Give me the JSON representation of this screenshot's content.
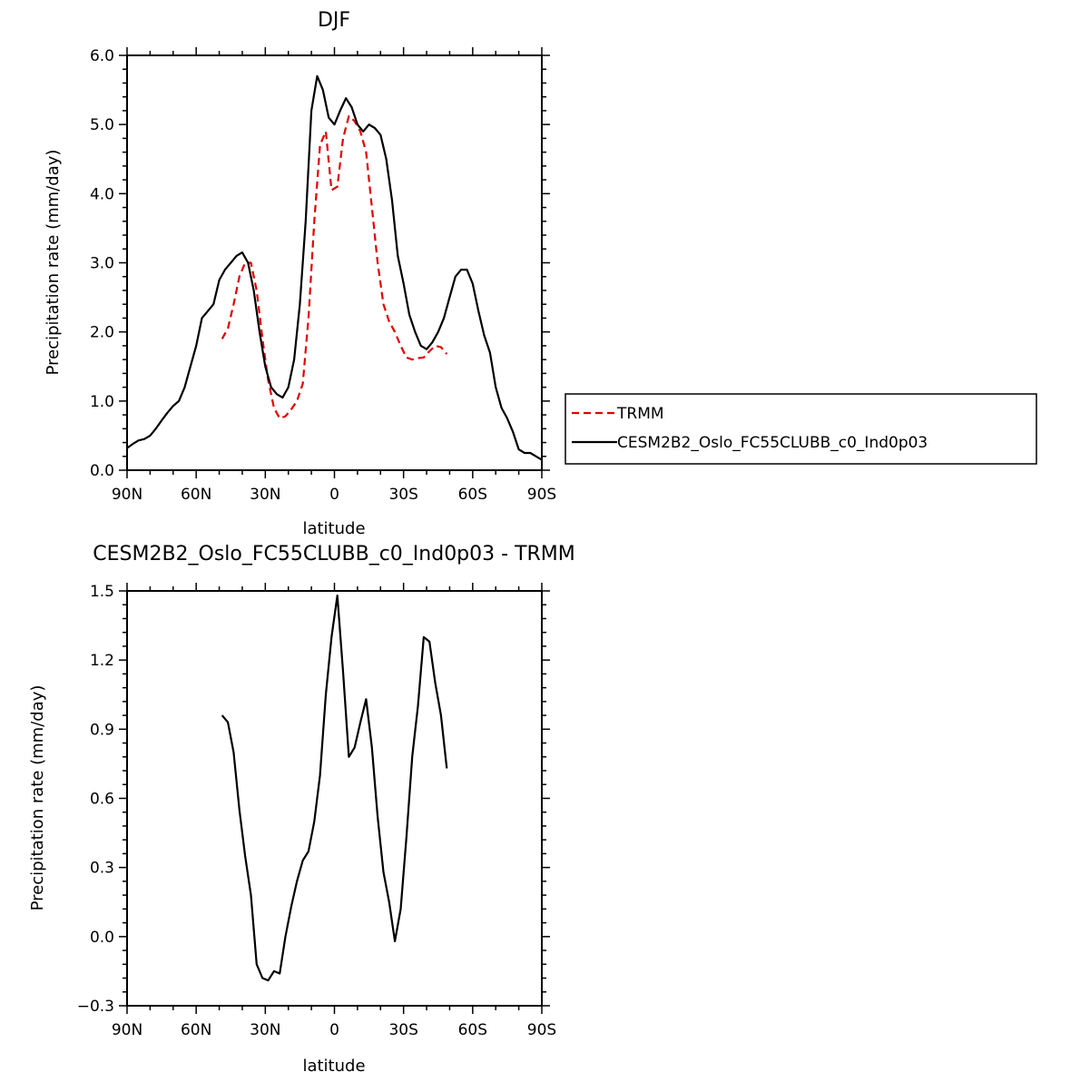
{
  "chart_data": [
    {
      "type": "line",
      "title": "DJF",
      "xlabel": "latitude",
      "ylabel": "Precipitation rate (mm/day)",
      "xlim": [
        90,
        -90
      ],
      "ylim": [
        0,
        6
      ],
      "x_ticks": [
        90,
        60,
        30,
        0,
        -30,
        -60,
        -90
      ],
      "x_tick_labels": [
        "90N",
        "60N",
        "30N",
        "0",
        "30S",
        "60S",
        "90S"
      ],
      "y_ticks": [
        0,
        1,
        2,
        3,
        4,
        5,
        6
      ],
      "y_tick_labels": [
        "0.0",
        "1.0",
        "2.0",
        "3.0",
        "4.0",
        "5.0",
        "6.0"
      ],
      "legend_position": "right",
      "series": [
        {
          "name": "TRMM",
          "color": "#e00000",
          "dash": "dashed",
          "x": [
            48.75,
            46.25,
            43.75,
            41.25,
            38.75,
            36.25,
            33.75,
            31.25,
            28.75,
            26.25,
            23.75,
            21.25,
            18.75,
            16.25,
            13.75,
            11.25,
            8.75,
            6.25,
            3.75,
            1.25,
            -1.25,
            -3.75,
            -6.25,
            -8.75,
            -11.25,
            -13.75,
            -16.25,
            -18.75,
            -21.25,
            -23.75,
            -26.25,
            -28.75,
            -31.25,
            -33.75,
            -36.25,
            -38.75,
            -41.25,
            -43.75,
            -46.25,
            -48.75
          ],
          "y": [
            1.9,
            2.05,
            2.4,
            2.8,
            3.0,
            3.0,
            2.6,
            1.9,
            1.3,
            0.9,
            0.75,
            0.78,
            0.88,
            1.0,
            1.25,
            2.2,
            3.6,
            4.7,
            4.9,
            4.05,
            4.1,
            4.8,
            5.12,
            5.05,
            4.9,
            4.6,
            3.8,
            3.0,
            2.4,
            2.15,
            2.0,
            1.8,
            1.63,
            1.6,
            1.62,
            1.63,
            1.72,
            1.8,
            1.78,
            1.68
          ]
        },
        {
          "name": "CESM2B2_Oslo_FC55CLUBB_c0_Ind0p03",
          "color": "#000000",
          "dash": "solid",
          "x": [
            90,
            87.5,
            85,
            82.5,
            80,
            77.5,
            75,
            72.5,
            70,
            67.5,
            65,
            62.5,
            60,
            57.5,
            55,
            52.5,
            50,
            47.5,
            45,
            42.5,
            40,
            37.5,
            35,
            32.5,
            30,
            27.5,
            25,
            22.5,
            20,
            17.5,
            15,
            12.5,
            10,
            7.5,
            5,
            2.5,
            0,
            -2.5,
            -5,
            -7.5,
            -10,
            -12.5,
            -15,
            -17.5,
            -20,
            -22.5,
            -25,
            -27.5,
            -30,
            -32.5,
            -35,
            -37.5,
            -40,
            -42.5,
            -45,
            -47.5,
            -50,
            -52.5,
            -55,
            -57.5,
            -60,
            -62.5,
            -65,
            -67.5,
            -70,
            -72.5,
            -75,
            -77.5,
            -80,
            -82.5,
            -85,
            -87.5,
            -90
          ],
          "y": [
            0.32,
            0.38,
            0.43,
            0.45,
            0.5,
            0.6,
            0.72,
            0.83,
            0.93,
            1.0,
            1.2,
            1.5,
            1.8,
            2.2,
            2.3,
            2.4,
            2.75,
            2.9,
            3.0,
            3.1,
            3.15,
            3.0,
            2.6,
            2.0,
            1.5,
            1.2,
            1.1,
            1.05,
            1.2,
            1.6,
            2.4,
            3.6,
            5.2,
            5.7,
            5.5,
            5.1,
            5.0,
            5.2,
            5.38,
            5.25,
            5.0,
            4.9,
            5.0,
            4.95,
            4.85,
            4.5,
            3.9,
            3.1,
            2.7,
            2.25,
            2.0,
            1.8,
            1.75,
            1.85,
            2.0,
            2.2,
            2.5,
            2.8,
            2.9,
            2.9,
            2.7,
            2.3,
            1.95,
            1.7,
            1.2,
            0.9,
            0.75,
            0.55,
            0.3,
            0.25,
            0.25,
            0.2,
            0.15
          ]
        }
      ]
    },
    {
      "type": "line",
      "title": "CESM2B2_Oslo_FC55CLUBB_c0_Ind0p03 - TRMM",
      "xlabel": "latitude",
      "ylabel": "Precipitation rate (mm/day)",
      "xlim": [
        90,
        -90
      ],
      "ylim": [
        -0.3,
        1.5
      ],
      "x_ticks": [
        90,
        60,
        30,
        0,
        -30,
        -60,
        -90
      ],
      "x_tick_labels": [
        "90N",
        "60N",
        "30N",
        "0",
        "30S",
        "60S",
        "90S"
      ],
      "y_ticks": [
        -0.3,
        0,
        0.3,
        0.6,
        0.9,
        1.2,
        1.5
      ],
      "y_tick_labels": [
        "−0.3",
        "0.0",
        "0.3",
        "0.6",
        "0.9",
        "1.2",
        "1.5"
      ],
      "series": [
        {
          "color": "#000000",
          "dash": "solid",
          "x": [
            48.75,
            46.25,
            43.75,
            41.25,
            38.75,
            36.25,
            33.75,
            31.25,
            28.75,
            26.25,
            23.75,
            21.25,
            18.75,
            16.25,
            13.75,
            11.25,
            8.75,
            6.25,
            3.75,
            1.25,
            -1.25,
            -3.75,
            -6.25,
            -8.75,
            -11.25,
            -13.75,
            -16.25,
            -18.75,
            -21.25,
            -23.75,
            -26.25,
            -28.75,
            -31.25,
            -33.75,
            -36.25,
            -38.75,
            -41.25,
            -43.75,
            -46.25,
            -48.75
          ],
          "y": [
            0.96,
            0.93,
            0.8,
            0.55,
            0.35,
            0.18,
            -0.12,
            -0.18,
            -0.19,
            -0.15,
            -0.16,
            0.0,
            0.13,
            0.24,
            0.33,
            0.37,
            0.5,
            0.7,
            1.05,
            1.3,
            1.48,
            1.15,
            0.78,
            0.82,
            0.93,
            1.03,
            0.82,
            0.52,
            0.28,
            0.15,
            -0.02,
            0.12,
            0.43,
            0.78,
            1.0,
            1.3,
            1.28,
            1.1,
            0.96,
            0.73
          ]
        }
      ]
    }
  ]
}
